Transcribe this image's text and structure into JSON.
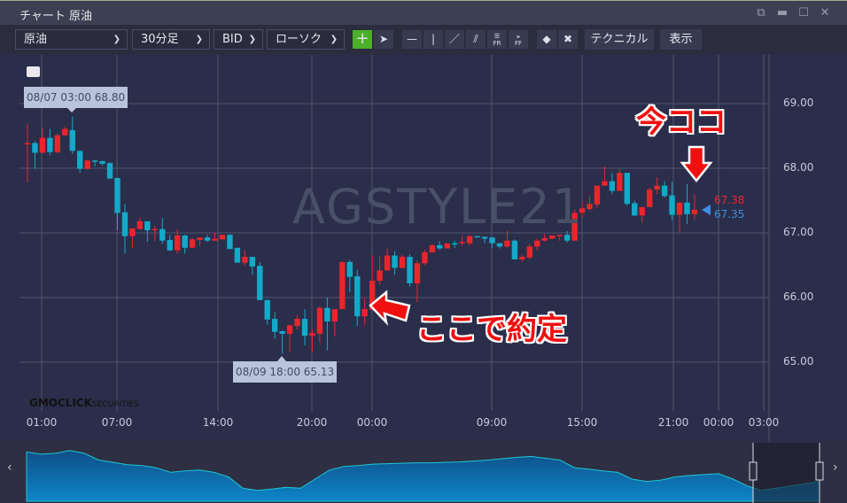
{
  "window": {
    "title": "チャート 原油",
    "icons": [
      "detach-icon",
      "minimize-icon",
      "maximize-icon",
      "close-icon"
    ]
  },
  "toolbar": {
    "symbol": "原油",
    "timeframe": "30分足",
    "price_type": "BID",
    "chart_type": "ローソク",
    "technical_label": "テクニカル",
    "display_label": "表示",
    "fr_label": "FR",
    "ff_label": "FF",
    "accent": "#4caf2a"
  },
  "chart": {
    "watermark": "AGSTYLE21",
    "high_tip": "08/07 03:00 68.80",
    "low_tip": "08/09 18:00 65.13",
    "ask_price": "67.38",
    "bid_price": "67.35",
    "logo_main": "GMOCLICK",
    "logo_sub": "SECURITIES",
    "annotation_now": "今ココ",
    "annotation_fill": "ここで約定",
    "up_color": "#e8262c",
    "down_color": "#14a9c8"
  },
  "chart_data": {
    "type": "candlestick",
    "y_ticks": [
      "69.00",
      "68.00",
      "67.00",
      "66.00",
      "65.00"
    ],
    "ylim": [
      64.7,
      69.5
    ],
    "x_ticks": [
      "01:00",
      "07:00",
      "14:00",
      "20:00",
      "00:00",
      "09:00",
      "15:00",
      "21:00",
      "00:00",
      "03:00"
    ],
    "grid": true,
    "candles": [
      [
        68.38,
        68.69,
        67.78,
        68.39
      ],
      [
        68.39,
        68.42,
        67.99,
        68.24
      ],
      [
        68.24,
        68.63,
        68.23,
        68.47
      ],
      [
        68.47,
        68.61,
        68.2,
        68.25
      ],
      [
        68.25,
        68.54,
        68.23,
        68.51
      ],
      [
        68.51,
        68.64,
        68.5,
        68.61
      ],
      [
        68.59,
        68.8,
        68.22,
        68.27
      ],
      [
        68.27,
        68.27,
        67.93,
        67.99
      ],
      [
        67.99,
        68.13,
        67.98,
        68.12
      ],
      [
        68.12,
        68.13,
        68.03,
        68.11
      ],
      [
        68.11,
        68.12,
        68.04,
        68.07
      ],
      [
        68.08,
        68.09,
        67.84,
        67.84
      ],
      [
        67.85,
        67.85,
        67.04,
        67.31
      ],
      [
        67.32,
        67.45,
        66.68,
        66.95
      ],
      [
        66.95,
        67.07,
        66.77,
        67.07
      ],
      [
        67.06,
        67.24,
        67.05,
        67.18
      ],
      [
        67.18,
        67.18,
        66.86,
        67.04
      ],
      [
        67.05,
        67.11,
        66.88,
        67.06
      ],
      [
        67.06,
        67.23,
        66.83,
        66.88
      ],
      [
        66.89,
        66.97,
        66.72,
        66.73
      ],
      [
        66.73,
        67.05,
        66.68,
        66.96
      ],
      [
        66.96,
        66.97,
        66.68,
        66.77
      ],
      [
        66.77,
        66.92,
        66.77,
        66.9
      ],
      [
        66.89,
        66.93,
        66.8,
        66.93
      ],
      [
        66.93,
        66.97,
        66.86,
        66.88
      ],
      [
        66.88,
        67.0,
        66.88,
        66.91
      ],
      [
        66.9,
        66.97,
        66.9,
        66.97
      ],
      [
        66.97,
        66.98,
        66.75,
        66.75
      ],
      [
        66.77,
        66.77,
        66.54,
        66.54
      ],
      [
        66.54,
        66.74,
        66.5,
        66.63
      ],
      [
        66.63,
        66.63,
        66.35,
        66.48
      ],
      [
        66.49,
        66.55,
        65.96,
        65.96
      ],
      [
        65.96,
        65.97,
        65.58,
        65.66
      ],
      [
        65.67,
        65.78,
        65.36,
        65.47
      ],
      [
        65.48,
        65.49,
        65.13,
        65.44
      ],
      [
        65.44,
        65.58,
        65.15,
        65.57
      ],
      [
        65.56,
        65.73,
        65.5,
        65.67
      ],
      [
        65.67,
        65.82,
        65.26,
        65.41
      ],
      [
        65.41,
        65.51,
        65.17,
        65.45
      ],
      [
        65.44,
        65.86,
        65.3,
        65.84
      ],
      [
        65.84,
        66.0,
        65.18,
        65.63
      ],
      [
        65.63,
        65.82,
        65.4,
        65.82
      ],
      [
        65.82,
        66.55,
        65.82,
        66.55
      ],
      [
        66.55,
        66.58,
        66.08,
        66.32
      ],
      [
        66.33,
        66.43,
        65.56,
        65.71
      ],
      [
        65.71,
        65.98,
        65.58,
        65.82
      ],
      [
        65.81,
        66.66,
        65.81,
        66.26
      ],
      [
        66.26,
        66.64,
        66.2,
        66.42
      ],
      [
        66.42,
        66.76,
        66.41,
        66.65
      ],
      [
        66.65,
        66.72,
        66.35,
        66.46
      ],
      [
        66.46,
        66.66,
        66.45,
        66.63
      ],
      [
        66.63,
        66.67,
        66.17,
        66.22
      ],
      [
        66.22,
        66.57,
        65.93,
        66.53
      ],
      [
        66.53,
        66.74,
        66.5,
        66.7
      ],
      [
        66.7,
        66.82,
        66.7,
        66.81
      ],
      [
        66.81,
        66.87,
        66.74,
        66.76
      ],
      [
        66.76,
        66.84,
        66.76,
        66.84
      ],
      [
        66.84,
        66.88,
        66.77,
        66.82
      ],
      [
        66.85,
        66.96,
        66.8,
        66.86
      ],
      [
        66.84,
        66.97,
        66.8,
        66.95
      ],
      [
        66.95,
        66.95,
        66.93,
        66.94
      ],
      [
        66.94,
        66.94,
        66.84,
        66.91
      ],
      [
        66.93,
        66.93,
        66.77,
        66.84
      ],
      [
        66.84,
        66.84,
        66.76,
        66.79
      ],
      [
        66.79,
        67.03,
        66.77,
        66.88
      ],
      [
        66.88,
        66.9,
        66.59,
        66.59
      ],
      [
        66.59,
        66.66,
        66.55,
        66.63
      ],
      [
        66.62,
        66.83,
        66.59,
        66.79
      ],
      [
        66.79,
        66.91,
        66.73,
        66.88
      ],
      [
        66.88,
        66.98,
        66.87,
        66.92
      ],
      [
        66.91,
        66.96,
        66.9,
        66.96
      ],
      [
        66.95,
        66.97,
        66.88,
        66.97
      ],
      [
        66.97,
        67.03,
        66.85,
        66.88
      ],
      [
        66.88,
        67.36,
        66.88,
        67.31
      ],
      [
        67.31,
        67.47,
        67.24,
        67.38
      ],
      [
        67.37,
        67.56,
        67.35,
        67.45
      ],
      [
        67.44,
        67.73,
        67.39,
        67.73
      ],
      [
        67.73,
        68.03,
        67.73,
        67.8
      ],
      [
        67.8,
        67.93,
        67.6,
        67.65
      ],
      [
        67.65,
        67.99,
        67.65,
        67.93
      ],
      [
        67.93,
        67.93,
        67.42,
        67.45
      ],
      [
        67.46,
        67.5,
        67.26,
        67.27
      ],
      [
        67.27,
        67.4,
        67.15,
        67.4
      ],
      [
        67.4,
        67.7,
        67.4,
        67.67
      ],
      [
        67.67,
        67.86,
        67.6,
        67.73
      ],
      [
        67.73,
        67.8,
        67.55,
        67.57
      ],
      [
        67.58,
        67.79,
        67.2,
        67.28
      ],
      [
        67.28,
        67.47,
        67.02,
        67.47
      ],
      [
        67.47,
        67.76,
        67.14,
        67.29
      ],
      [
        67.29,
        67.59,
        67.2,
        67.36
      ]
    ]
  },
  "navigator": {
    "levels": [
      0.9,
      0.85,
      0.87,
      0.93,
      0.87,
      0.72,
      0.67,
      0.62,
      0.6,
      0.55,
      0.45,
      0.48,
      0.5,
      0.45,
      0.35,
      0.1,
      0.05,
      0.08,
      0.12,
      0.1,
      0.3,
      0.5,
      0.58,
      0.6,
      0.63,
      0.64,
      0.65,
      0.66,
      0.66,
      0.67,
      0.68,
      0.7,
      0.72,
      0.75,
      0.78,
      0.8,
      0.76,
      0.72,
      0.55,
      0.52,
      0.48,
      0.45,
      0.3,
      0.25,
      0.28,
      0.35,
      0.38,
      0.4,
      0.42,
      0.3,
      0.15,
      0.05,
      0.1,
      0.15,
      0.2,
      0.25
    ],
    "selection_color": "#25273a"
  }
}
